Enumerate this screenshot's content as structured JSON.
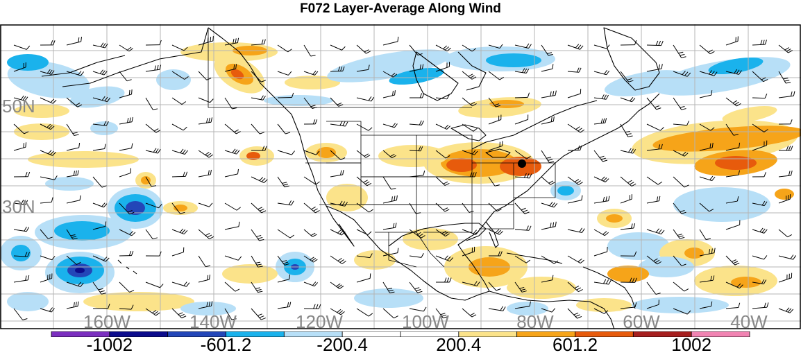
{
  "title": "F072 Layer-Average Along Wind",
  "lat_labels": [
    "50N",
    "30N"
  ],
  "lon_labels": [
    "160W",
    "140W",
    "120W",
    "100W",
    "80W",
    "60W",
    "40W"
  ],
  "colorbar": {
    "labels": [
      "-1002",
      "-601.2",
      "-200.4",
      "200.4",
      "601.2",
      "1002"
    ],
    "colors": [
      "#7b2fbf",
      "#0c0c8c",
      "#2346b8",
      "#1ab2ec",
      "#b7dff7",
      "#ffffff",
      "#ffffff",
      "#fbe38a",
      "#f6a419",
      "#e75b0c",
      "#a61f1f",
      "#f183b2"
    ]
  },
  "colors": {
    "coast": "#000000",
    "grid": "#b4b4b4",
    "axis_label": "#888888",
    "pos_light": "#fbe38a",
    "pos_mid": "#f6a419",
    "pos_strong": "#e75b0c",
    "neg_light": "#b7dff7",
    "neg_mid": "#1ab2ec",
    "neg_strong": "#2346b8",
    "neg_extreme": "#0c0c8c"
  }
}
